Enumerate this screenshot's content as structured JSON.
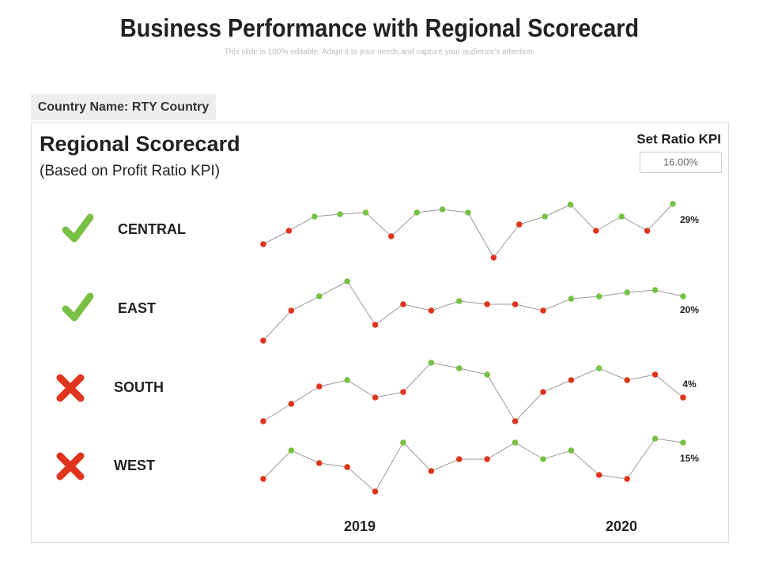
{
  "header": {
    "title": "Business Performance with Regional Scorecard",
    "subtitle": "This slide is 100% editable. Adapt it to your needs and capture your audience's attention."
  },
  "country_label": "Country Name: RTY Country",
  "scorecard": {
    "title": "Regional Scorecard",
    "subtitle": "(Based on Profit Ratio KPI)",
    "kpi_label": "Set Ratio  KPI",
    "kpi_value": "16.00%",
    "ylim": [
      0,
      100
    ],
    "x_labels": [
      "2019",
      "2020"
    ],
    "good_color": "#77c043",
    "bad_color": "#e0341c",
    "line_color": "#999999",
    "regions": [
      {
        "name": "CENTRAL",
        "status": "check",
        "last_label": "29%",
        "values": [
          31,
          48,
          66,
          69,
          71,
          41,
          71,
          75,
          71,
          14,
          56,
          66,
          81,
          48,
          66,
          48,
          82
        ],
        "colors": [
          "bad",
          "bad",
          "good",
          "good",
          "good",
          "bad",
          "good",
          "good",
          "good",
          "bad",
          "bad",
          "good",
          "good",
          "bad",
          "good",
          "bad",
          "good"
        ]
      },
      {
        "name": "EAST",
        "status": "check",
        "last_label": "20%",
        "values": [
          19,
          57,
          75,
          94,
          39,
          65,
          57,
          69,
          65,
          65,
          57,
          72,
          75,
          80,
          83,
          75
        ],
        "colors": [
          "bad",
          "bad",
          "good",
          "good",
          "bad",
          "bad",
          "bad",
          "good",
          "bad",
          "bad",
          "bad",
          "good",
          "good",
          "good",
          "good",
          "good"
        ]
      },
      {
        "name": "SOUTH",
        "status": "cross",
        "last_label": "4%",
        "values": [
          17,
          39,
          61,
          69,
          47,
          54,
          91,
          84,
          76,
          17,
          54,
          69,
          84,
          69,
          76,
          47
        ],
        "colors": [
          "bad",
          "bad",
          "bad",
          "good",
          "bad",
          "bad",
          "good",
          "good",
          "good",
          "bad",
          "bad",
          "bad",
          "good",
          "bad",
          "bad",
          "bad"
        ]
      },
      {
        "name": "WEST",
        "status": "cross",
        "last_label": "15%",
        "values": [
          34,
          70,
          54,
          49,
          18,
          80,
          44,
          59,
          59,
          80,
          59,
          70,
          39,
          34,
          85,
          80
        ],
        "colors": [
          "bad",
          "good",
          "bad",
          "bad",
          "bad",
          "good",
          "bad",
          "bad",
          "bad",
          "good",
          "good",
          "good",
          "bad",
          "bad",
          "good",
          "good"
        ]
      }
    ]
  }
}
